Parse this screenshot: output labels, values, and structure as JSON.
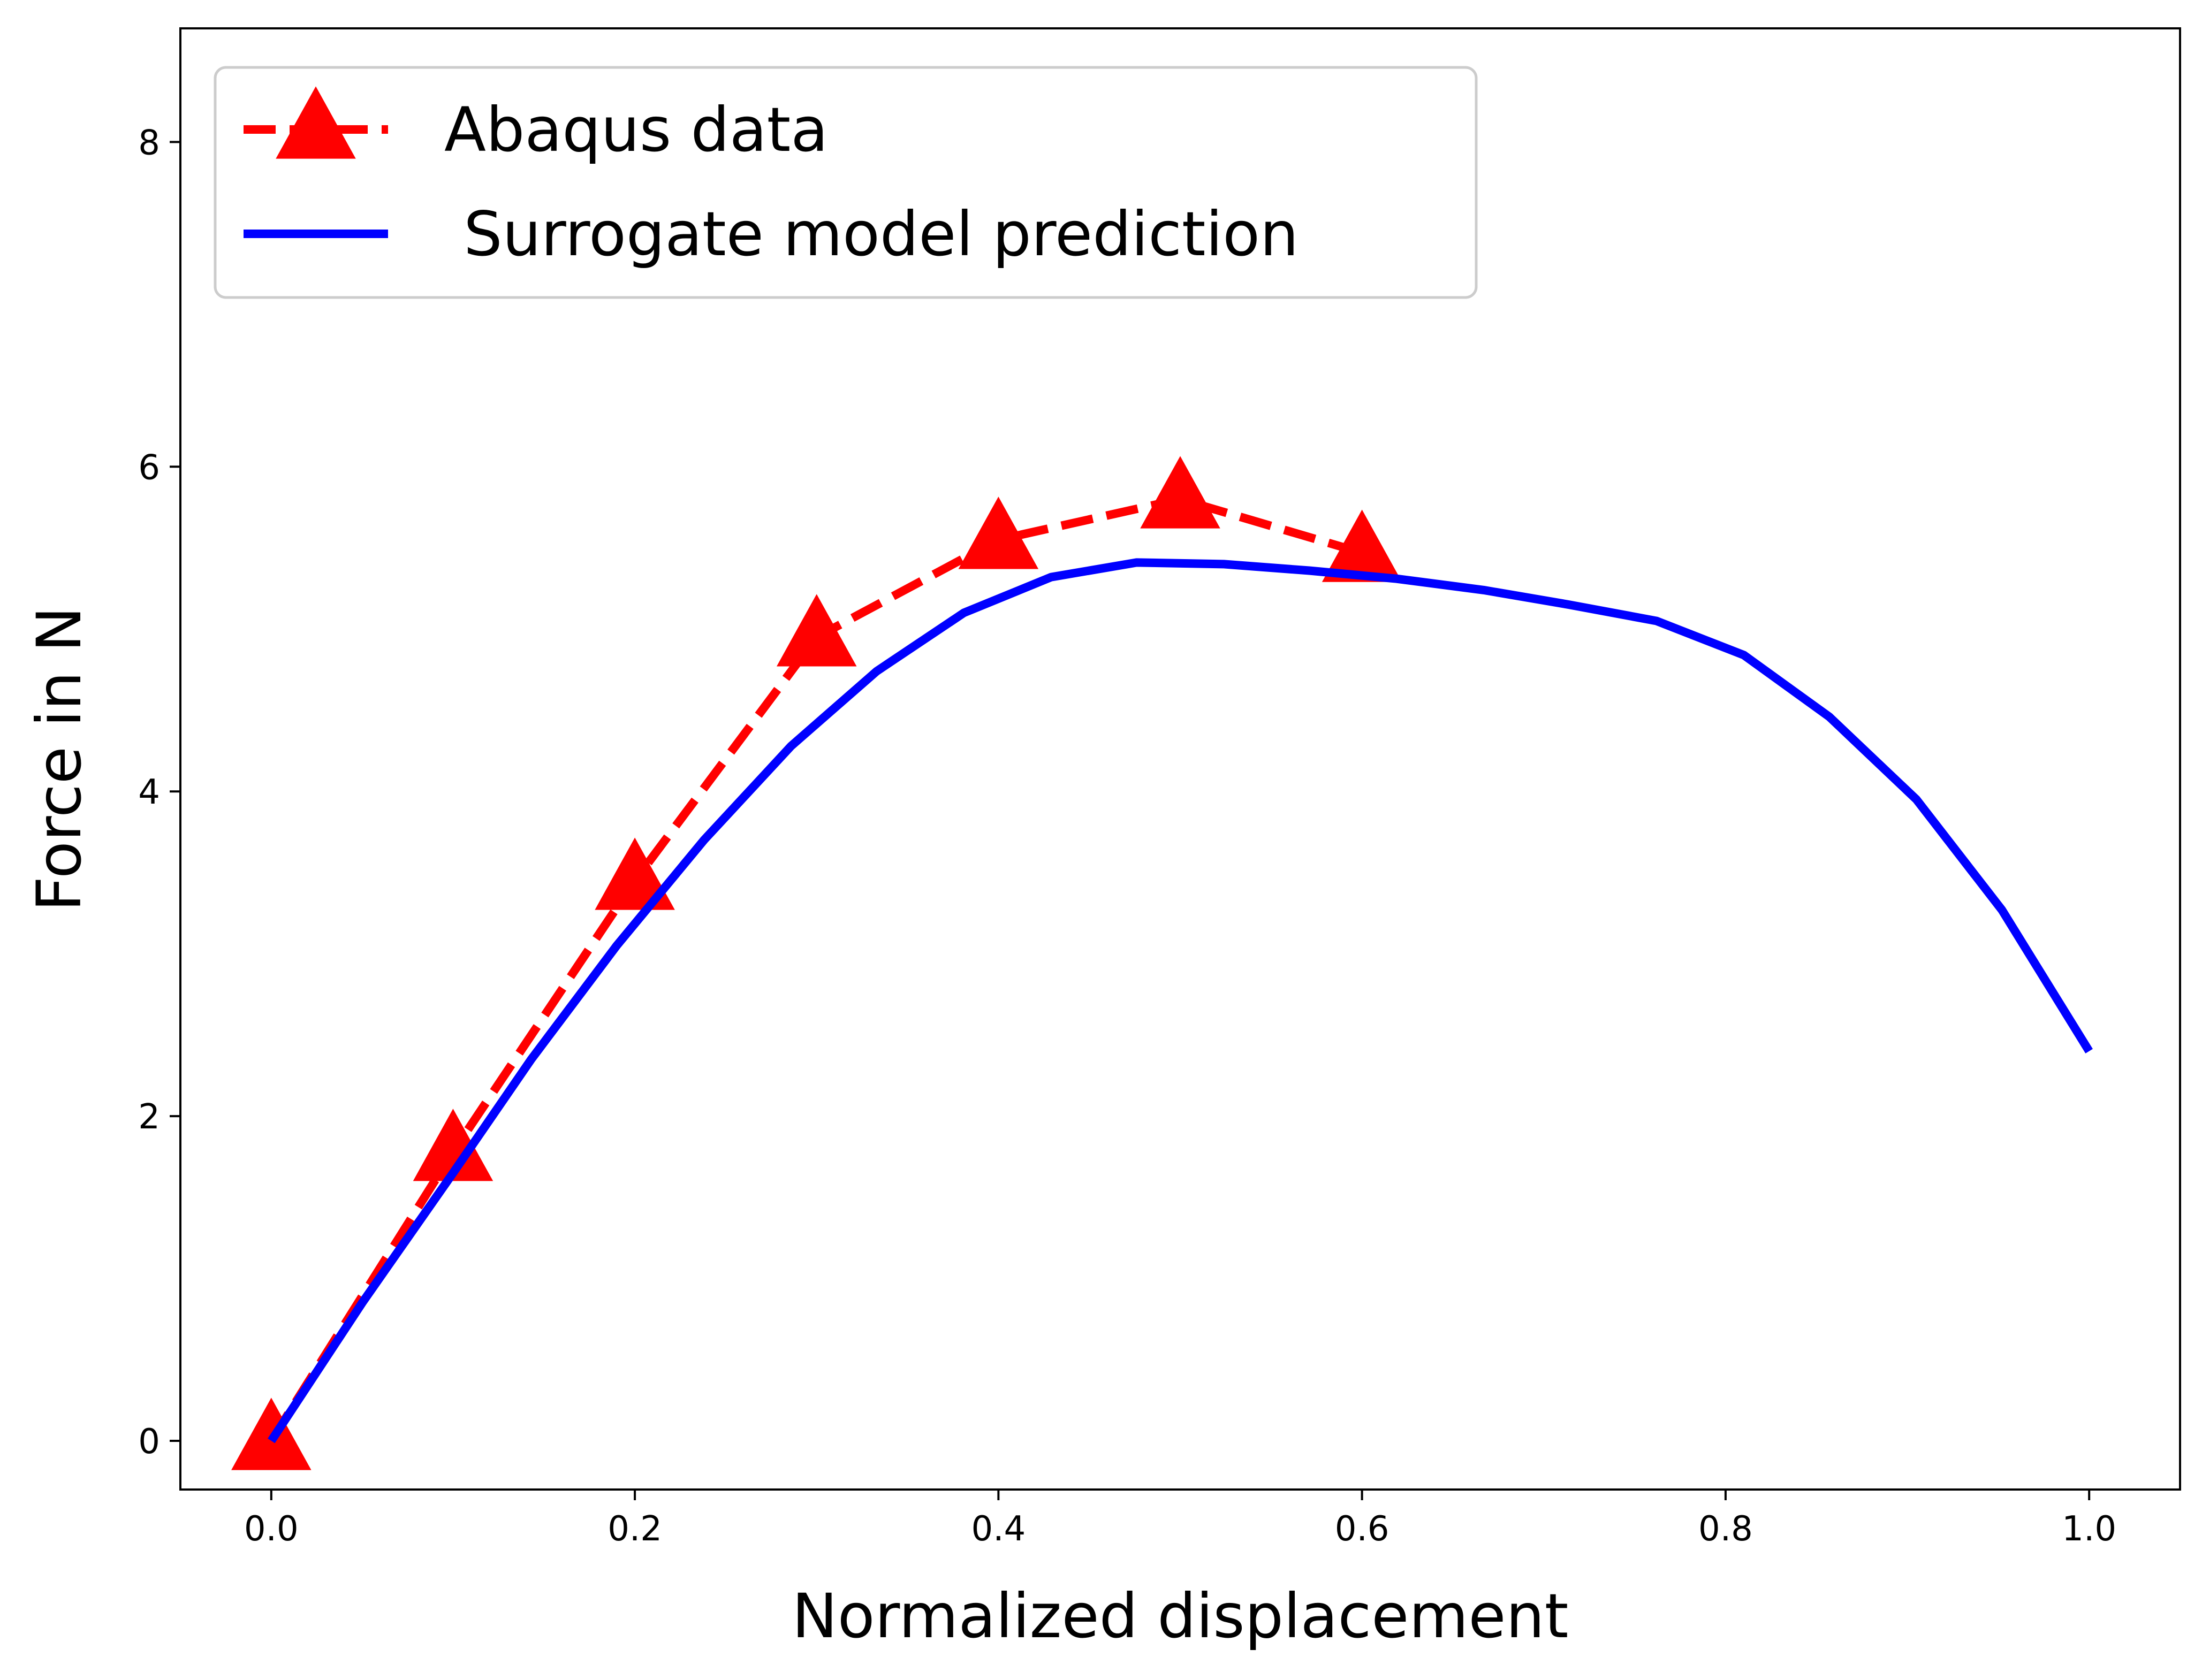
{
  "chart_data": {
    "type": "line",
    "xlabel": "Normalized displacement",
    "ylabel": "Force in N",
    "xlim": [
      -0.05,
      1.05
    ],
    "ylim": [
      -0.3,
      8.7
    ],
    "xticks": [
      0.0,
      0.2,
      0.4,
      0.6,
      0.8,
      1.0
    ],
    "xtick_labels": [
      "0.0",
      "0.2",
      "0.4",
      "0.6",
      "0.8",
      "1.0"
    ],
    "yticks": [
      0,
      2,
      4,
      6,
      8
    ],
    "ytick_labels": [
      "0",
      "2",
      "4",
      "6",
      "8"
    ],
    "grid": false,
    "legend_position": "top-left",
    "series": [
      {
        "name": "Abaqus data",
        "color": "#ff0000",
        "line_style": "dashed",
        "marker": "triangle-up",
        "x": [
          0.0,
          0.1,
          0.2,
          0.3,
          0.4,
          0.5,
          0.6
        ],
        "y": [
          0.0,
          1.78,
          3.45,
          4.95,
          5.55,
          5.8,
          5.47
        ]
      },
      {
        "name": " Surrogate model prediction",
        "color": "#0000ff",
        "line_style": "solid",
        "marker": "none",
        "x": [
          0.0,
          0.05,
          0.1,
          0.143,
          0.19,
          0.238,
          0.286,
          0.333,
          0.381,
          0.429,
          0.476,
          0.524,
          0.571,
          0.619,
          0.667,
          0.714,
          0.762,
          0.81,
          0.857,
          0.905,
          0.952,
          1.0
        ],
        "y": [
          0.0,
          0.85,
          1.65,
          2.35,
          3.05,
          3.7,
          4.28,
          4.74,
          5.1,
          5.32,
          5.41,
          5.4,
          5.36,
          5.31,
          5.24,
          5.15,
          5.05,
          4.84,
          4.46,
          3.95,
          3.27,
          2.4
        ]
      }
    ]
  }
}
